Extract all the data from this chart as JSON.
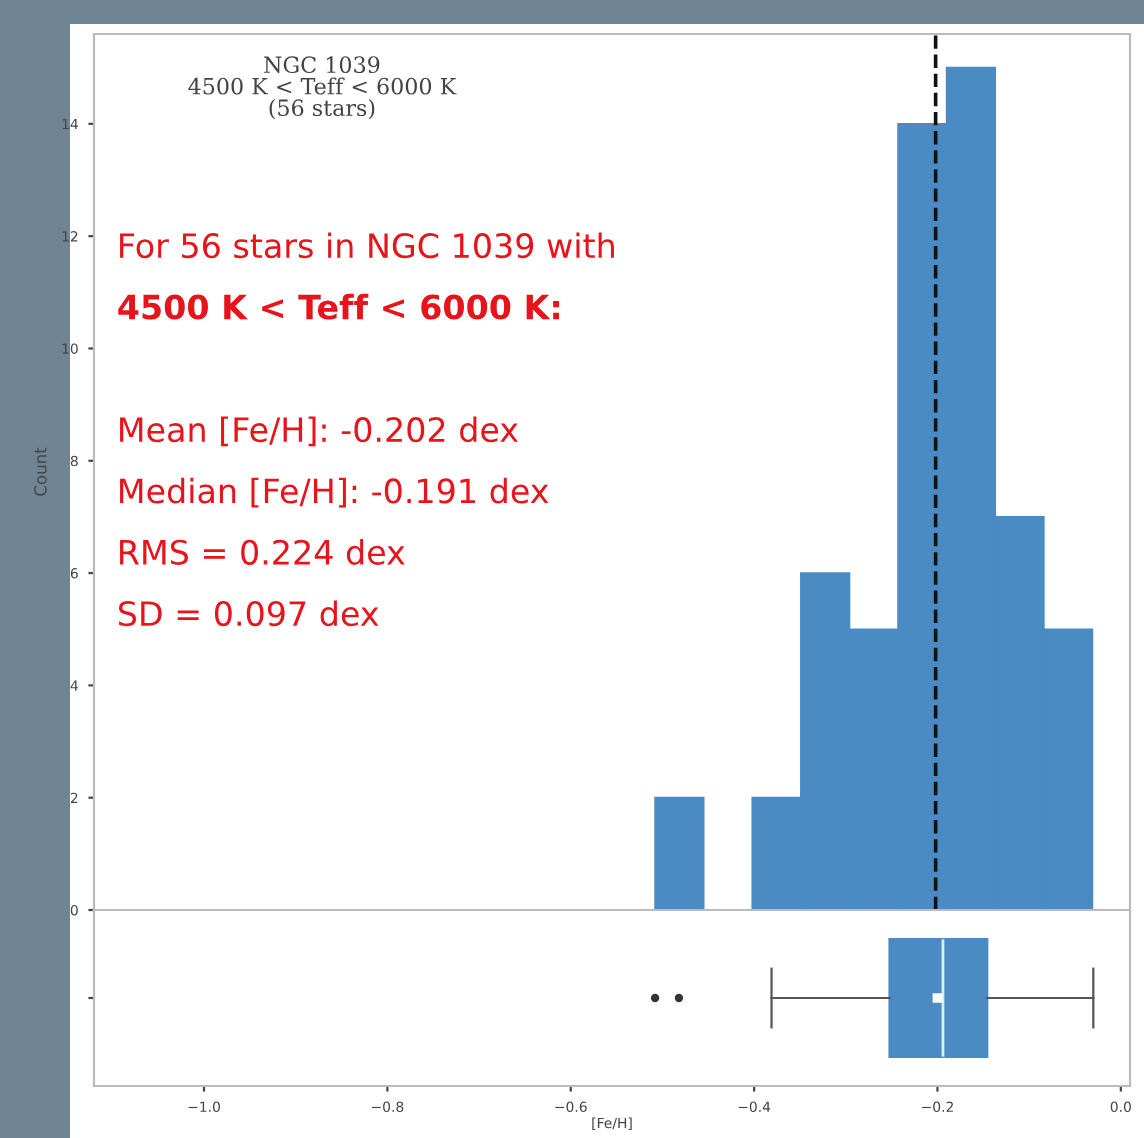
{
  "chart_data": [
    {
      "type": "histogram",
      "title": "NGC 1039\n4500 K < Teff < 6000 K\n(56 stars)",
      "ylabel": "Count",
      "bins": [
        -0.508,
        -0.455,
        -0.402,
        -0.349,
        -0.296,
        -0.243,
        -0.19,
        -0.137,
        -0.084,
        -0.031
      ],
      "values": [
        2,
        0,
        2,
        6,
        5,
        14,
        15,
        7,
        5
      ],
      "color": "#4a8bc4",
      "xlim": [
        -1.12,
        0.01
      ],
      "ylim": [
        0,
        15.6
      ],
      "yticks": [
        0,
        2,
        4,
        6,
        8,
        10,
        12,
        14
      ],
      "tick_labels": "y",
      "grid": false,
      "ref_lines": [
        {
          "axis": "x",
          "value": -0.202,
          "line_style": "dashed",
          "color": "#111111"
        }
      ],
      "annotations": [
        "For 56 stars in NGC 1039 with",
        "4500 K < Teff < 6000 K:",
        "Mean [Fe/H]: -0.202 dex",
        "Median [Fe/H]: -0.191 dex",
        "RMS = 0.224 dex",
        "SD = 0.097 dex"
      ]
    },
    {
      "type": "box",
      "xlabel": "[Fe/H]",
      "orientation": "horizontal",
      "categories": [
        null
      ],
      "color": "#4a8bc4",
      "boxes": [
        {
          "low": -0.381,
          "q1": -0.252,
          "median": -0.194,
          "q3": -0.146,
          "high": -0.03,
          "mean": -0.2,
          "outliers": [
            -0.508,
            -0.482
          ]
        }
      ],
      "xlim": [
        -1.12,
        0.01
      ],
      "xticks": [
        {
          "value": -1.0,
          "label": "−1.0"
        },
        {
          "value": -0.8,
          "label": "−0.8"
        },
        {
          "value": -0.6,
          "label": "−0.6"
        },
        {
          "value": -0.4,
          "label": "−0.4"
        },
        {
          "value": -0.2,
          "label": "−0.2"
        },
        {
          "value": 0.0,
          "label": "0.0"
        }
      ],
      "tick_labels": "x",
      "grid": false
    }
  ]
}
